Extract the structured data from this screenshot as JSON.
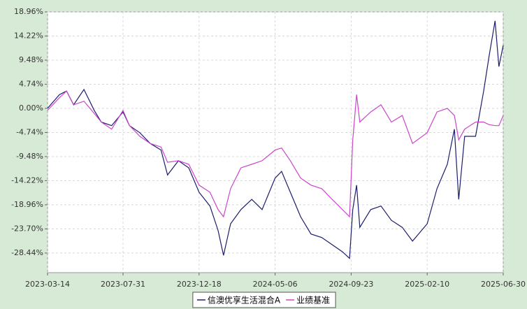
{
  "chart_data": {
    "type": "line",
    "x": [
      "2023-03-14",
      "2023-04-05",
      "2023-04-18",
      "2023-05-01",
      "2023-05-20",
      "2023-06-08",
      "2023-06-21",
      "2023-07-10",
      "2023-07-31",
      "2023-08-12",
      "2023-08-31",
      "2023-09-19",
      "2023-10-09",
      "2023-10-21",
      "2023-11-10",
      "2023-11-29",
      "2023-12-18",
      "2024-01-07",
      "2024-01-22",
      "2024-02-01",
      "2024-02-14",
      "2024-03-04",
      "2024-03-24",
      "2024-04-12",
      "2024-05-06",
      "2024-05-18",
      "2024-06-03",
      "2024-06-22",
      "2024-07-11",
      "2024-07-31",
      "2024-08-19",
      "2024-09-07",
      "2024-09-20",
      "2024-09-26",
      "2024-10-03",
      "2024-10-09",
      "2024-10-29",
      "2024-11-17",
      "2024-12-06",
      "2024-12-26",
      "2025-01-14",
      "2025-02-10",
      "2025-02-28",
      "2025-03-19",
      "2025-04-01",
      "2025-04-09",
      "2025-04-20",
      "2025-05-10",
      "2025-05-25",
      "2025-06-04",
      "2025-06-15",
      "2025-06-22",
      "2025-06-30"
    ],
    "series": [
      {
        "name": "信澳优享生活混合A",
        "color": "#1c1c6e",
        "values": [
          0,
          2.7,
          3.4,
          0.7,
          3.7,
          -0.4,
          -2.7,
          -3.4,
          -0.7,
          -3.4,
          -4.8,
          -6.9,
          -8.2,
          -13.1,
          -10.3,
          -11.7,
          -16.5,
          -19.2,
          -24.0,
          -28.9,
          -22.7,
          -19.9,
          -17.9,
          -19.9,
          -13.7,
          -12.4,
          -16.5,
          -21.3,
          -24.7,
          -25.4,
          -26.8,
          -28.2,
          -29.5,
          -19.9,
          -15.1,
          -23.4,
          -19.9,
          -19.2,
          -22.0,
          -23.4,
          -26.1,
          -22.7,
          -15.8,
          -11.0,
          -4.1,
          -17.9,
          -5.5,
          -5.5,
          3.4,
          10.3,
          17.2,
          8.2,
          12.4
        ]
      },
      {
        "name": "业绩基准",
        "color": "#cc44cc",
        "values": [
          -0.4,
          2.1,
          3.4,
          0.7,
          1.4,
          -1.0,
          -2.7,
          -4.1,
          -0.4,
          -3.4,
          -5.5,
          -6.9,
          -7.6,
          -10.6,
          -10.3,
          -11.0,
          -15.1,
          -16.5,
          -19.9,
          -21.3,
          -15.8,
          -11.7,
          -11.0,
          -10.3,
          -8.2,
          -7.8,
          -10.3,
          -13.7,
          -15.1,
          -15.8,
          -17.9,
          -19.9,
          -21.3,
          -6.2,
          2.7,
          -2.7,
          -0.7,
          0.7,
          -2.7,
          -1.4,
          -6.9,
          -4.8,
          -0.7,
          0.0,
          -1.4,
          -6.2,
          -4.1,
          -2.7,
          -2.7,
          -3.2,
          -3.4,
          -3.4,
          -1.4
        ]
      }
    ],
    "xlim": [
      "2023-03-14",
      "2025-06-30"
    ],
    "xticks": [
      "2023-03-14",
      "2023-07-31",
      "2023-12-18",
      "2024-05-06",
      "2024-09-23",
      "2025-02-10",
      "2025-06-30"
    ],
    "ylim": [
      -32.3,
      18.96
    ],
    "yticks": [
      {
        "value": 18.96,
        "label": "18.96%"
      },
      {
        "value": 14.22,
        "label": "14.22%"
      },
      {
        "value": 9.48,
        "label": "9.48%"
      },
      {
        "value": 4.74,
        "label": "4.74%"
      },
      {
        "value": 0,
        "label": "0.00%"
      },
      {
        "value": -4.74,
        "label": "-4.74%"
      },
      {
        "value": -9.48,
        "label": "-9.48%"
      },
      {
        "value": -14.22,
        "label": "-14.22%"
      },
      {
        "value": -18.96,
        "label": "-18.96%"
      },
      {
        "value": -23.7,
        "label": "-23.70%"
      },
      {
        "value": -28.44,
        "label": "-28.44%"
      }
    ],
    "grid": true
  }
}
